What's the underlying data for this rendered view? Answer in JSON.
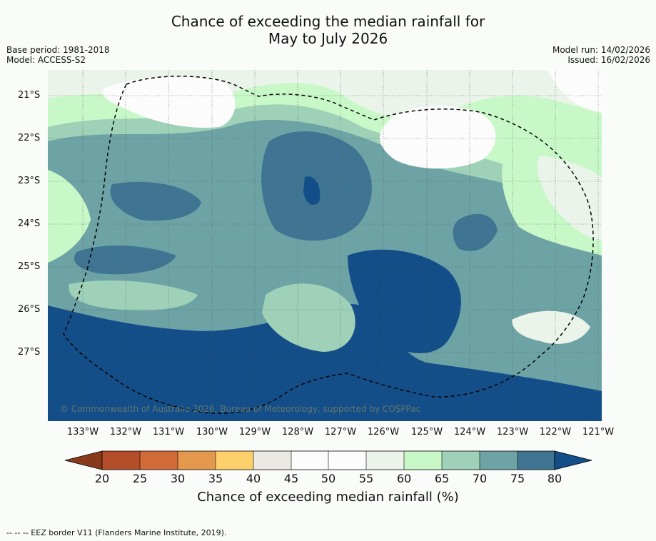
{
  "title": {
    "line1": "Chance of exceeding the median rainfall for",
    "line2": "May to July 2026"
  },
  "meta_left": {
    "base_period": "Base period: 1981-2018",
    "model": "Model: ACCESS-S2"
  },
  "meta_right": {
    "model_run": "Model run: 14/02/2026",
    "issued": "Issued: 16/02/2026"
  },
  "map": {
    "copyright": "© Commonwealth of Australia 2026, Bureau of Meteorology, supported by COSPPac",
    "lat_labels": [
      "21°S",
      "22°S",
      "23°S",
      "24°S",
      "25°S",
      "26°S",
      "27°S"
    ],
    "lon_labels": [
      "133°W",
      "132°W",
      "131°W",
      "130°W",
      "129°W",
      "128°W",
      "127°W",
      "126°W",
      "125°W",
      "124°W",
      "123°W",
      "122°W",
      "121°W"
    ]
  },
  "colorbar": {
    "ticks": [
      "20",
      "25",
      "30",
      "35",
      "40",
      "45",
      "50",
      "55",
      "60",
      "65",
      "70",
      "75",
      "80"
    ],
    "label": "Chance of exceeding median rainfall (%)",
    "colors": {
      "below20": "#8a3a1c",
      "c20_25": "#b44e2a",
      "c25_30": "#d06a36",
      "c30_35": "#e3984b",
      "c35_40": "#fdd06c",
      "c40_45": "#ece9e4",
      "c45_50": "#fbfcfb",
      "c50_55": "#fbfcfb",
      "c55_60": "#ebf4ea",
      "c60_65": "#c9f8c8",
      "c65_70": "#9ed1b7",
      "c70_75": "#6ea3a6",
      "c75_80": "#3f7592",
      "above80": "#134e89"
    }
  },
  "footer": "-- -- -- EEZ border V11 (Flanders Marine Institute, 2019)."
}
